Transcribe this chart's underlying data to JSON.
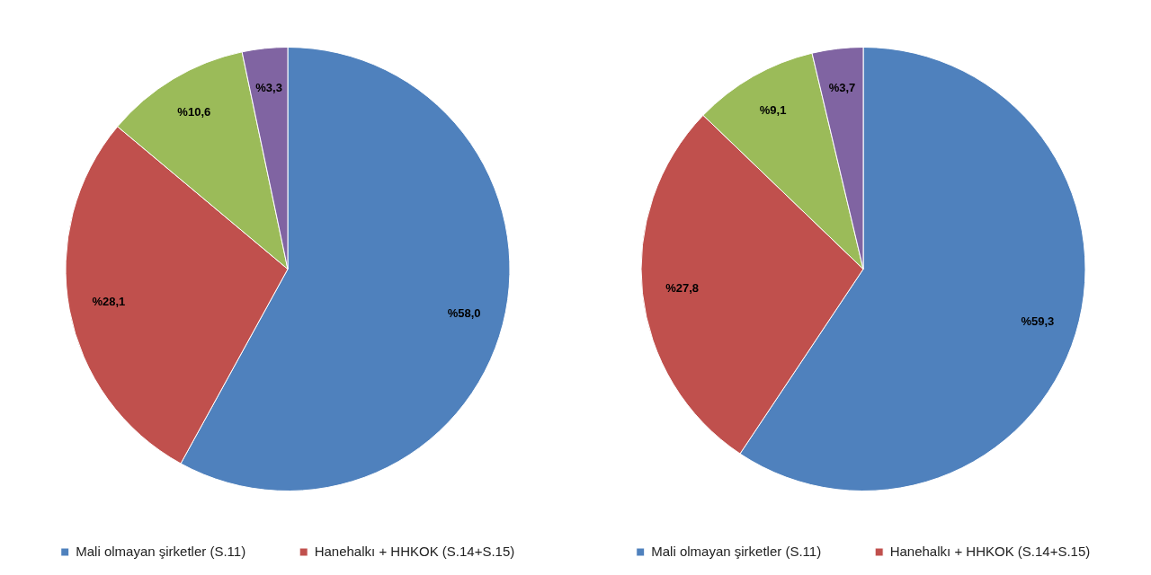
{
  "chart_data": [
    {
      "type": "pie",
      "categories": [
        "Mali olmayan şirketler (S.11)",
        "Hanehalkı + HHKOK (S.14+S.15)",
        null,
        null
      ],
      "values": [
        58.0,
        28.1,
        10.6,
        3.3
      ],
      "colors": [
        "#4f81bd",
        "#c0504d",
        "#9bbb59",
        "#8064a2"
      ],
      "value_labels": [
        "%58,0",
        "%28,1",
        "%10,6",
        "%3,3"
      ],
      "legend": "bottom"
    },
    {
      "type": "pie",
      "categories": [
        "Mali olmayan şirketler (S.11)",
        "Hanehalkı + HHKOK (S.14+S.15)",
        null,
        null
      ],
      "values": [
        59.3,
        27.8,
        9.1,
        3.7
      ],
      "colors": [
        "#4f81bd",
        "#c0504d",
        "#9bbb59",
        "#8064a2"
      ],
      "value_labels": [
        "%59,3",
        "%27,8",
        "%9,1",
        "%3,7"
      ],
      "legend": "bottom"
    }
  ]
}
